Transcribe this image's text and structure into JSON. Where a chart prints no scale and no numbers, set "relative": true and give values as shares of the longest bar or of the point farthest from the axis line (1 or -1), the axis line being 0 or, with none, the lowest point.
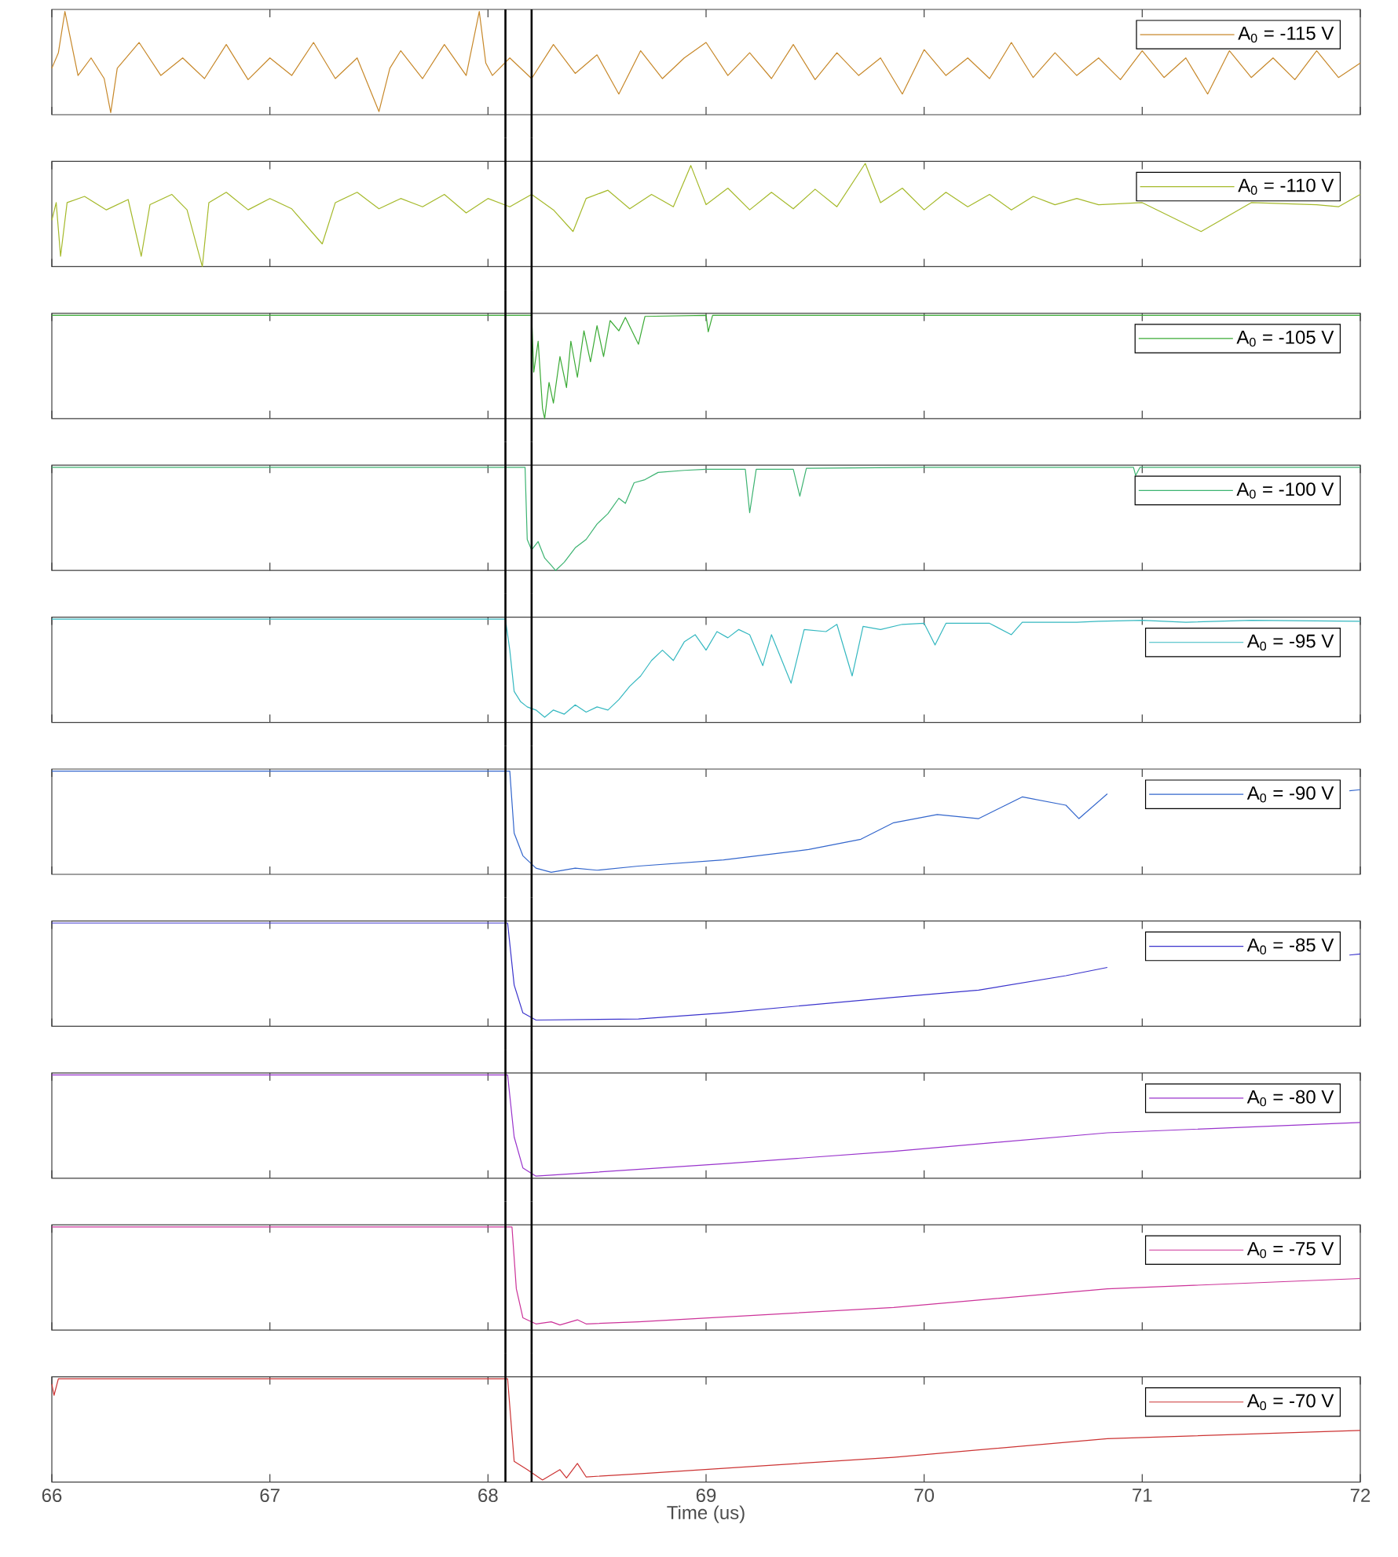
{
  "chart_data": [
    {
      "type": "line",
      "relative": true,
      "xlim": [
        66,
        72
      ],
      "xticks": [
        66,
        67,
        68,
        69,
        70,
        71,
        72
      ],
      "tick_labels": false,
      "legend": "top right",
      "ref_lines": [
        {
          "axis": "x",
          "value": 68.08,
          "color": "#000000"
        },
        {
          "axis": "x",
          "value": 68.2,
          "color": "#000000"
        }
      ],
      "x": [
        66.0,
        66.03,
        66.06,
        66.12,
        66.18,
        66.24,
        66.27,
        66.3,
        66.4,
        66.5,
        66.6,
        66.7,
        66.8,
        66.9,
        67.0,
        67.1,
        67.2,
        67.3,
        67.4,
        67.5,
        67.55,
        67.6,
        67.7,
        67.8,
        67.9,
        67.96,
        67.99,
        68.02,
        68.1,
        68.2,
        68.3,
        68.4,
        68.5,
        68.6,
        68.7,
        68.8,
        68.9,
        69.0,
        69.1,
        69.2,
        69.3,
        69.4,
        69.5,
        69.6,
        69.7,
        69.8,
        69.9,
        70.0,
        70.1,
        70.2,
        70.3,
        70.4,
        70.5,
        70.6,
        70.7,
        70.8,
        70.9,
        71.0,
        71.1,
        71.2,
        71.3,
        71.4,
        71.5,
        71.6,
        71.7,
        71.8,
        71.9,
        72.0
      ],
      "series": [
        {
          "name": "A$_{0}$ = -115 V",
          "color": "#c7882a",
          "values": [
            0.45,
            0.6,
            1.0,
            0.38,
            0.55,
            0.35,
            0.02,
            0.45,
            0.7,
            0.38,
            0.55,
            0.35,
            0.68,
            0.34,
            0.55,
            0.38,
            0.7,
            0.35,
            0.55,
            0.03,
            0.45,
            0.62,
            0.35,
            0.68,
            0.38,
            1.0,
            0.5,
            0.38,
            0.55,
            0.35,
            0.68,
            0.4,
            0.58,
            0.2,
            0.62,
            0.35,
            0.55,
            0.7,
            0.38,
            0.6,
            0.35,
            0.68,
            0.34,
            0.6,
            0.38,
            0.55,
            0.2,
            0.63,
            0.38,
            0.55,
            0.35,
            0.7,
            0.36,
            0.6,
            0.38,
            0.55,
            0.34,
            0.62,
            0.36,
            0.55,
            0.2,
            0.62,
            0.36,
            0.55,
            0.34,
            0.62,
            0.36,
            0.5
          ]
        }
      ]
    },
    {
      "type": "line",
      "relative": true,
      "xlim": [
        66,
        72
      ],
      "xticks": [
        66,
        67,
        68,
        69,
        70,
        71,
        72
      ],
      "tick_labels": false,
      "legend": "top right",
      "ref_lines": [
        {
          "axis": "x",
          "value": 68.08,
          "color": "#000000"
        },
        {
          "axis": "x",
          "value": 68.2,
          "color": "#000000"
        }
      ],
      "x": [
        66.0,
        66.02,
        66.04,
        66.07,
        66.15,
        66.25,
        66.35,
        66.41,
        66.45,
        66.55,
        66.62,
        66.69,
        66.72,
        66.8,
        66.9,
        67.0,
        67.1,
        67.24,
        67.3,
        67.4,
        67.5,
        67.6,
        67.7,
        67.8,
        67.9,
        68.0,
        68.1,
        68.2,
        68.3,
        68.39,
        68.45,
        68.55,
        68.65,
        68.75,
        68.85,
        68.93,
        69.0,
        69.1,
        69.2,
        69.3,
        69.4,
        69.5,
        69.6,
        69.73,
        69.8,
        69.9,
        70.0,
        70.1,
        70.2,
        70.3,
        70.4,
        70.5,
        70.6,
        70.7,
        70.8,
        71.0,
        71.27,
        71.5,
        71.8,
        71.9,
        72.0
      ],
      "series": [
        {
          "name": "A$_{0}$ = -110 V",
          "color": "#a5b92a",
          "values": [
            0.45,
            0.62,
            0.1,
            0.62,
            0.68,
            0.55,
            0.65,
            0.1,
            0.6,
            0.7,
            0.55,
            0.0,
            0.62,
            0.72,
            0.55,
            0.66,
            0.56,
            0.22,
            0.62,
            0.72,
            0.56,
            0.66,
            0.58,
            0.7,
            0.52,
            0.66,
            0.58,
            0.7,
            0.55,
            0.34,
            0.66,
            0.74,
            0.56,
            0.7,
            0.58,
            0.98,
            0.6,
            0.76,
            0.55,
            0.72,
            0.56,
            0.75,
            0.58,
            1.0,
            0.62,
            0.76,
            0.55,
            0.72,
            0.58,
            0.7,
            0.55,
            0.68,
            0.6,
            0.66,
            0.6,
            0.62,
            0.34,
            0.62,
            0.6,
            0.58,
            0.7
          ]
        }
      ]
    },
    {
      "type": "line",
      "relative": true,
      "xlim": [
        66,
        72
      ],
      "xticks": [
        66,
        67,
        68,
        69,
        70,
        71,
        72
      ],
      "tick_labels": false,
      "legend": "top right",
      "ref_lines": [
        {
          "axis": "x",
          "value": 68.08,
          "color": "#000000"
        },
        {
          "axis": "x",
          "value": 68.2,
          "color": "#000000"
        }
      ],
      "x": [
        66.0,
        68.2,
        68.21,
        68.23,
        68.25,
        68.26,
        68.28,
        68.3,
        68.33,
        68.36,
        68.38,
        68.41,
        68.44,
        68.47,
        68.5,
        68.53,
        68.56,
        68.6,
        68.63,
        68.69,
        68.72,
        69.0,
        69.01,
        69.03,
        72.0
      ],
      "series": [
        {
          "name": "A$_{0}$ = -105 V",
          "color": "#3aaa35",
          "values": [
            1.0,
            1.0,
            0.45,
            0.75,
            0.1,
            0.0,
            0.35,
            0.15,
            0.6,
            0.3,
            0.75,
            0.4,
            0.85,
            0.55,
            0.9,
            0.6,
            0.95,
            0.85,
            0.98,
            0.72,
            0.99,
            1.0,
            0.84,
            1.0,
            1.0
          ]
        }
      ]
    },
    {
      "type": "line",
      "relative": true,
      "xlim": [
        66,
        72
      ],
      "xticks": [
        66,
        67,
        68,
        69,
        70,
        71,
        72
      ],
      "tick_labels": false,
      "legend": "top right",
      "ref_lines": [
        {
          "axis": "x",
          "value": 68.08,
          "color": "#000000"
        },
        {
          "axis": "x",
          "value": 68.2,
          "color": "#000000"
        }
      ],
      "x": [
        66.0,
        68.17,
        68.18,
        68.2,
        68.23,
        68.26,
        68.29,
        68.31,
        68.35,
        68.4,
        68.45,
        68.5,
        68.55,
        68.6,
        68.63,
        68.67,
        68.72,
        68.78,
        68.9,
        69.0,
        69.18,
        69.2,
        69.23,
        69.4,
        69.43,
        69.46,
        70.0,
        70.96,
        70.97,
        70.99,
        72.0
      ],
      "series": [
        {
          "name": "A$_{0}$ = -100 V",
          "color": "#3cb371",
          "values": [
            1.0,
            1.0,
            0.3,
            0.2,
            0.28,
            0.12,
            0.05,
            0.0,
            0.08,
            0.22,
            0.3,
            0.45,
            0.55,
            0.7,
            0.65,
            0.85,
            0.88,
            0.95,
            0.97,
            0.98,
            0.98,
            0.56,
            0.98,
            0.98,
            0.72,
            0.99,
            1.0,
            1.0,
            0.92,
            1.0,
            1.0
          ]
        }
      ]
    },
    {
      "type": "line",
      "relative": true,
      "xlim": [
        66,
        72
      ],
      "xticks": [
        66,
        67,
        68,
        69,
        70,
        71,
        72
      ],
      "tick_labels": false,
      "legend": "top right",
      "ref_lines": [
        {
          "axis": "x",
          "value": 68.08,
          "color": "#000000"
        },
        {
          "axis": "x",
          "value": 68.2,
          "color": "#000000"
        }
      ],
      "x": [
        66.0,
        68.08,
        68.1,
        68.12,
        68.15,
        68.18,
        68.22,
        68.26,
        68.3,
        68.35,
        68.4,
        68.45,
        68.5,
        68.55,
        68.6,
        68.65,
        68.7,
        68.75,
        68.8,
        68.85,
        68.9,
        68.95,
        69.0,
        69.05,
        69.1,
        69.15,
        69.2,
        69.26,
        69.3,
        69.39,
        69.45,
        69.55,
        69.6,
        69.67,
        69.72,
        69.8,
        69.9,
        70.0,
        70.05,
        70.1,
        70.3,
        70.4,
        70.45,
        70.7,
        70.8,
        71.0,
        71.2,
        71.5,
        72.0
      ],
      "series": [
        {
          "name": "A$_{0}$ = -95 V",
          "color": "#35b8c0",
          "values": [
            1.0,
            1.0,
            0.7,
            0.3,
            0.2,
            0.15,
            0.12,
            0.05,
            0.12,
            0.08,
            0.17,
            0.1,
            0.15,
            0.12,
            0.22,
            0.35,
            0.45,
            0.6,
            0.7,
            0.6,
            0.78,
            0.85,
            0.7,
            0.88,
            0.82,
            0.9,
            0.85,
            0.55,
            0.85,
            0.38,
            0.9,
            0.88,
            0.95,
            0.45,
            0.93,
            0.9,
            0.95,
            0.96,
            0.75,
            0.96,
            0.96,
            0.85,
            0.97,
            0.97,
            0.98,
            0.99,
            0.97,
            0.99,
            0.98
          ]
        }
      ]
    },
    {
      "type": "line",
      "relative": true,
      "xlim": [
        66,
        72
      ],
      "xticks": [
        66,
        67,
        68,
        69,
        70,
        71,
        72
      ],
      "tick_labels": false,
      "legend": "top right",
      "ref_lines": [
        {
          "axis": "x",
          "value": 68.08,
          "color": "#000000"
        },
        {
          "axis": "x",
          "value": 68.2,
          "color": "#000000"
        }
      ],
      "x": [
        66.0,
        68.1,
        68.12,
        68.16,
        68.22,
        68.29,
        68.4,
        68.5,
        68.69,
        69.08,
        69.47,
        69.71,
        69.86,
        70.06,
        70.25,
        70.45,
        70.65,
        70.71,
        70.84,
        71.2,
        71.6,
        71.95,
        72.0
      ],
      "series": [
        {
          "name": "A$_{0}$ = -90 V",
          "color": "#3366cc",
          "values": [
            1.0,
            1.0,
            0.4,
            0.18,
            0.06,
            0.02,
            0.06,
            0.04,
            0.08,
            0.14,
            0.24,
            0.34,
            0.5,
            0.58,
            0.54,
            0.75,
            0.67,
            0.54,
            0.78,
            null,
            null,
            0.81,
            0.82
          ]
        }
      ]
    },
    {
      "type": "line",
      "relative": true,
      "xlim": [
        66,
        72
      ],
      "xticks": [
        66,
        67,
        68,
        69,
        70,
        71,
        72
      ],
      "tick_labels": false,
      "legend": "top right",
      "ref_lines": [
        {
          "axis": "x",
          "value": 68.08,
          "color": "#000000"
        },
        {
          "axis": "x",
          "value": 68.2,
          "color": "#000000"
        }
      ],
      "x": [
        66.0,
        68.09,
        68.12,
        68.16,
        68.22,
        68.69,
        69.08,
        69.86,
        70.25,
        70.65,
        70.84,
        71.4,
        71.95,
        72.0
      ],
      "series": [
        {
          "name": "A$_{0}$ = -85 V",
          "color": "#3a33cc",
          "values": [
            1.0,
            1.0,
            0.4,
            0.13,
            0.06,
            0.07,
            0.13,
            0.28,
            0.35,
            0.49,
            0.57,
            null,
            0.69,
            0.7
          ]
        }
      ]
    },
    {
      "type": "line",
      "relative": true,
      "xlim": [
        66,
        72
      ],
      "xticks": [
        66,
        67,
        68,
        69,
        70,
        71,
        72
      ],
      "tick_labels": false,
      "legend": "top right",
      "ref_lines": [
        {
          "axis": "x",
          "value": 68.08,
          "color": "#000000"
        },
        {
          "axis": "x",
          "value": 68.2,
          "color": "#000000"
        }
      ],
      "x": [
        66.0,
        68.09,
        68.12,
        68.16,
        68.22,
        69.08,
        69.86,
        70.84,
        72.0
      ],
      "series": [
        {
          "name": "A$_{0}$ = -80 V",
          "color": "#9933cc",
          "values": [
            1.0,
            1.0,
            0.4,
            0.1,
            0.02,
            0.14,
            0.26,
            0.44,
            0.54
          ]
        }
      ]
    },
    {
      "type": "line",
      "relative": true,
      "xlim": [
        66,
        72
      ],
      "xticks": [
        66,
        67,
        68,
        69,
        70,
        71,
        72
      ],
      "tick_labels": false,
      "legend": "top right",
      "ref_lines": [
        {
          "axis": "x",
          "value": 68.08,
          "color": "#000000"
        },
        {
          "axis": "x",
          "value": 68.2,
          "color": "#000000"
        }
      ],
      "x": [
        66.0,
        68.11,
        68.13,
        68.16,
        68.22,
        68.29,
        68.33,
        68.41,
        68.45,
        68.69,
        69.86,
        70.84,
        72.0
      ],
      "series": [
        {
          "name": "A$_{0}$ = -75 V",
          "color": "#cc3399",
          "values": [
            1.0,
            1.0,
            0.4,
            0.12,
            0.06,
            0.08,
            0.05,
            0.1,
            0.06,
            0.08,
            0.22,
            0.4,
            0.5
          ]
        }
      ]
    },
    {
      "type": "line",
      "relative": true,
      "xlim": [
        66,
        72
      ],
      "xticks": [
        66,
        67,
        68,
        69,
        70,
        71,
        72
      ],
      "tick_labels": "x",
      "xlabel": "Time (us)",
      "legend": "top right",
      "ref_lines": [
        {
          "axis": "x",
          "value": 68.08,
          "color": "#000000"
        },
        {
          "axis": "x",
          "value": 68.2,
          "color": "#000000"
        }
      ],
      "x": [
        66.0,
        66.01,
        66.03,
        68.09,
        68.12,
        68.18,
        68.25,
        68.33,
        68.36,
        68.41,
        68.45,
        68.69,
        69.86,
        70.84,
        72.0
      ],
      "series": [
        {
          "name": "A$_{0}$ = -70 V",
          "color": "#cc3333",
          "values": [
            0.95,
            0.84,
            1.0,
            1.0,
            0.2,
            0.12,
            0.02,
            0.12,
            0.04,
            0.18,
            0.05,
            0.08,
            0.24,
            0.42,
            0.5
          ]
        }
      ]
    }
  ]
}
